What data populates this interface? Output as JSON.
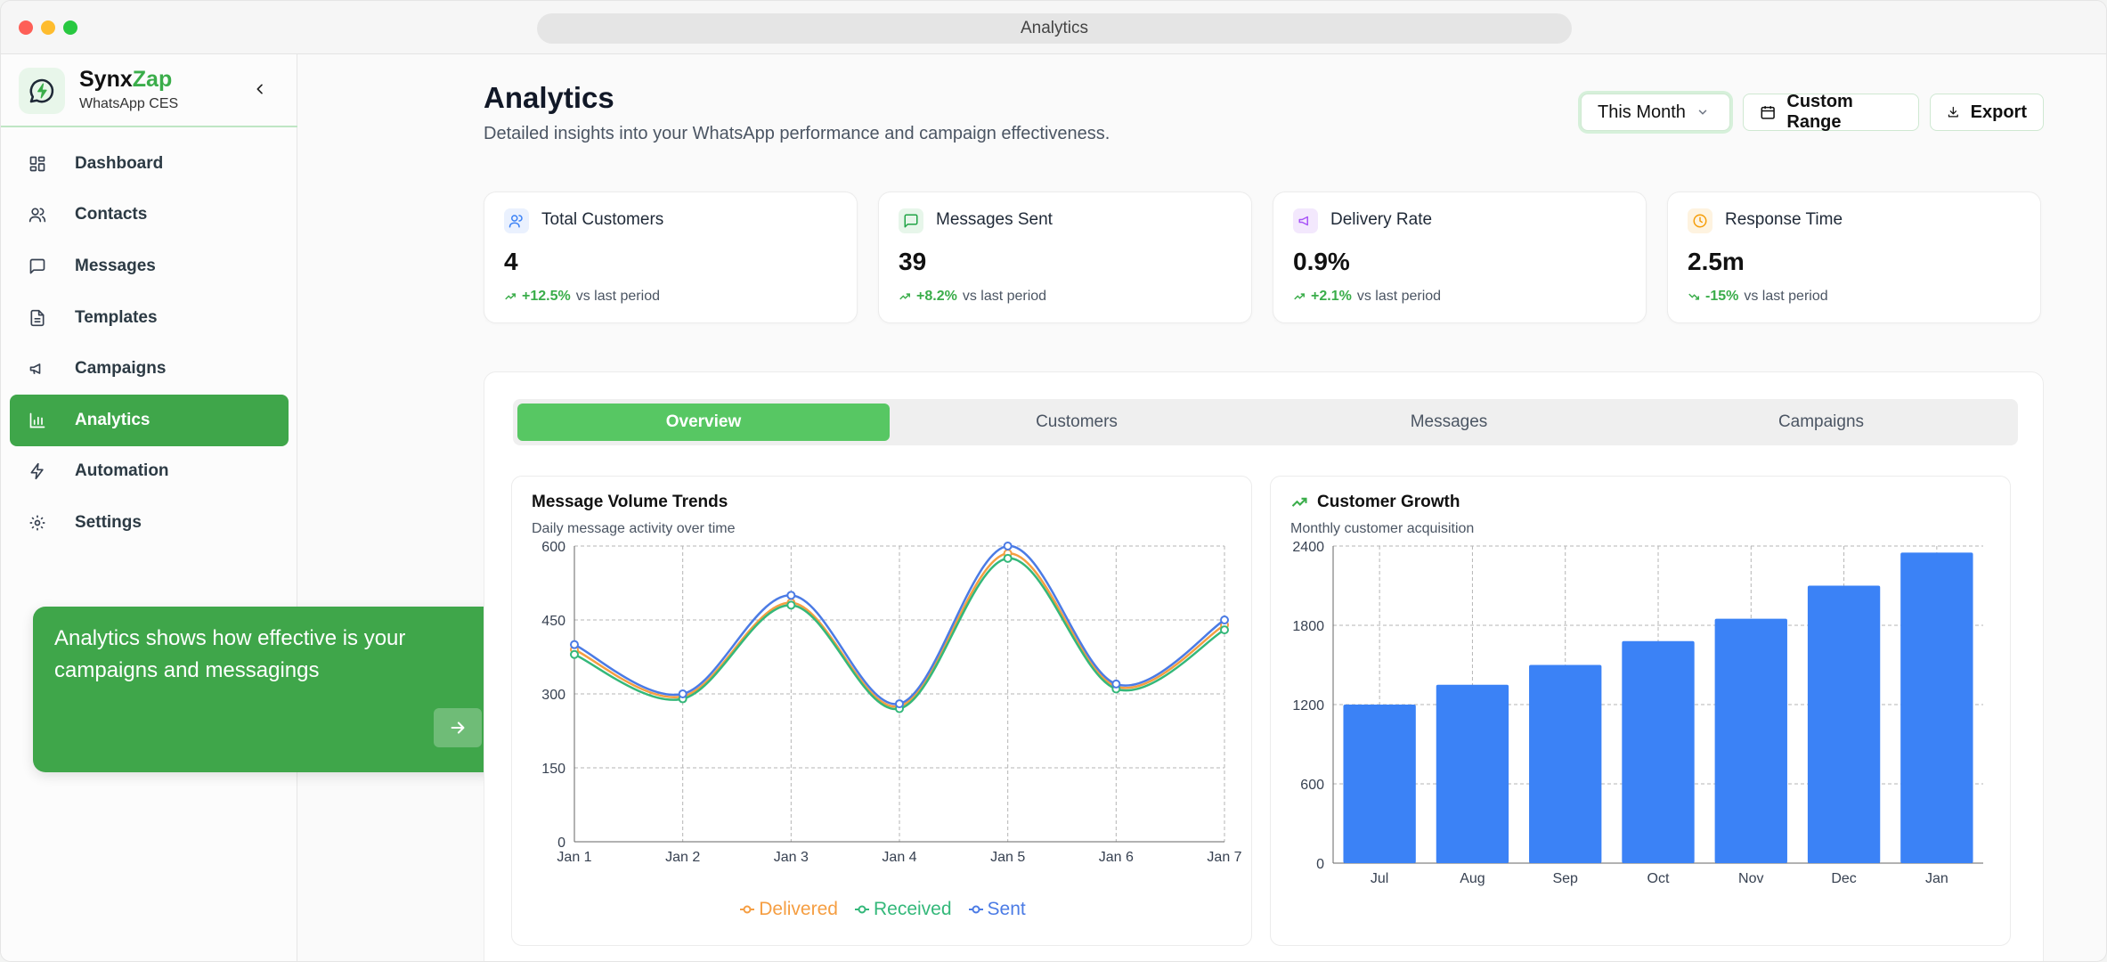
{
  "window": {
    "title": "Analytics"
  },
  "brand": {
    "name_part1": "Synx",
    "name_part2": "Zap",
    "subtitle": "WhatsApp CES"
  },
  "nav": [
    {
      "label": "Dashboard",
      "icon": "grid-icon",
      "active": false
    },
    {
      "label": "Contacts",
      "icon": "users-icon",
      "active": false
    },
    {
      "label": "Messages",
      "icon": "message-icon",
      "active": false
    },
    {
      "label": "Templates",
      "icon": "file-icon",
      "active": false
    },
    {
      "label": "Campaigns",
      "icon": "megaphone-icon",
      "active": false
    },
    {
      "label": "Analytics",
      "icon": "bar-chart-icon",
      "active": true
    },
    {
      "label": "Automation",
      "icon": "lightning-icon",
      "active": false
    },
    {
      "label": "Settings",
      "icon": "gear-icon",
      "active": false
    }
  ],
  "tooltip": {
    "text": "Analytics shows how effective is your campaigns and messagings"
  },
  "header": {
    "title": "Analytics",
    "subtitle": "Detailed insights into your WhatsApp performance and campaign effectiveness.",
    "period_select": "This Month",
    "custom_range": "Custom Range",
    "export": "Export"
  },
  "stats": [
    {
      "title": "Total Customers",
      "value": "4",
      "pct": "+12.5%",
      "suffix": "vs last period",
      "icon": "users-icon",
      "icon_color": "#3b82f6",
      "icon_bg": "#eaf1fe",
      "trend": "up"
    },
    {
      "title": "Messages Sent",
      "value": "39",
      "pct": "+8.2%",
      "suffix": "vs last period",
      "icon": "message-icon",
      "icon_color": "#22a447",
      "icon_bg": "#e7f6ea",
      "trend": "up"
    },
    {
      "title": "Delivery Rate",
      "value": "0.9%",
      "pct": "+2.1%",
      "suffix": "vs last period",
      "icon": "megaphone-icon",
      "icon_color": "#a855f7",
      "icon_bg": "#f3e8fd",
      "trend": "up"
    },
    {
      "title": "Response Time",
      "value": "2.5m",
      "pct": "-15%",
      "suffix": "vs last period",
      "icon": "clock-icon",
      "icon_color": "#f59e0b",
      "icon_bg": "#fef3e0",
      "trend": "down"
    }
  ],
  "tabs": [
    {
      "label": "Overview",
      "active": true
    },
    {
      "label": "Customers",
      "active": false
    },
    {
      "label": "Messages",
      "active": false
    },
    {
      "label": "Campaigns",
      "active": false
    }
  ],
  "charts": {
    "volume": {
      "title": "Message Volume Trends",
      "subtitle": "Daily message activity over time"
    },
    "growth": {
      "title": "Customer Growth",
      "subtitle": "Monthly customer acquisition"
    }
  },
  "chart_data": [
    {
      "type": "line",
      "title": "Message Volume Trends",
      "categories": [
        "Jan 1",
        "Jan 2",
        "Jan 3",
        "Jan 4",
        "Jan 5",
        "Jan 6",
        "Jan 7"
      ],
      "ylim": [
        0,
        600
      ],
      "yticks": [
        0,
        150,
        300,
        450,
        600
      ],
      "grid": true,
      "legend": "bottom",
      "series": [
        {
          "name": "Delivered",
          "color": "#f59e42",
          "values": [
            390,
            295,
            485,
            275,
            585,
            315,
            440
          ]
        },
        {
          "name": "Received",
          "color": "#34b87a",
          "values": [
            380,
            290,
            480,
            270,
            575,
            310,
            430
          ]
        },
        {
          "name": "Sent",
          "color": "#4b7be5",
          "values": [
            400,
            300,
            500,
            280,
            600,
            320,
            450
          ]
        }
      ]
    },
    {
      "type": "bar",
      "title": "Customer Growth",
      "categories": [
        "Jul",
        "Aug",
        "Sep",
        "Oct",
        "Nov",
        "Dec",
        "Jan"
      ],
      "values": [
        1200,
        1350,
        1500,
        1680,
        1850,
        2100,
        2350
      ],
      "ylim": [
        0,
        2400
      ],
      "yticks": [
        0,
        600,
        1200,
        1800,
        2400
      ],
      "grid": true,
      "color": "#3b82f6"
    }
  ]
}
